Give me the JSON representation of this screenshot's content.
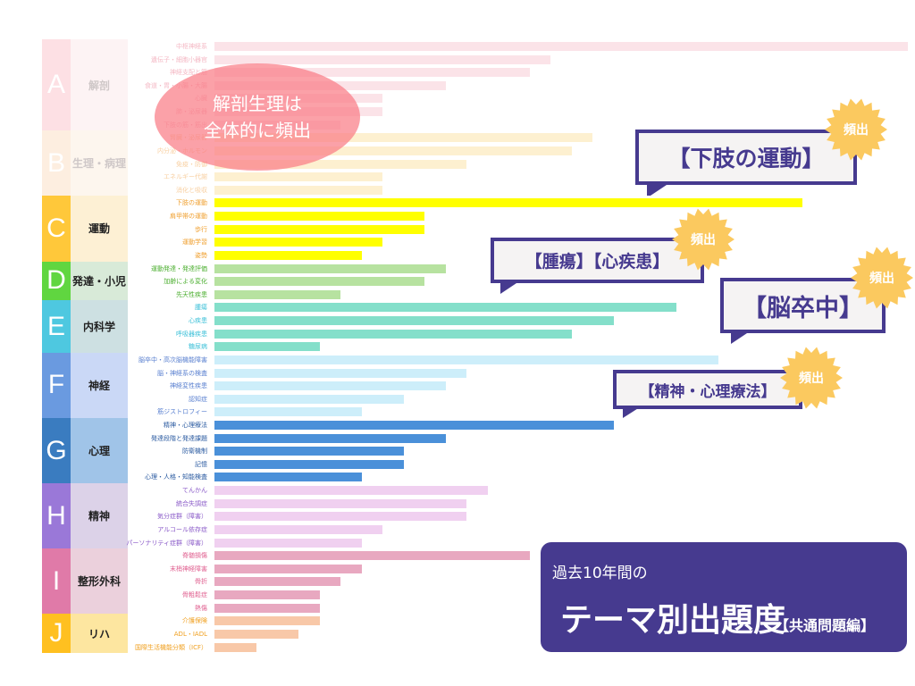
{
  "categories": [
    {
      "letter": "A",
      "name": "解剖",
      "letter_color": "#fde0e4",
      "name_bg": "#fdf3f4",
      "name_color": "#cfc8c8",
      "bar_color": "#fbe3e8",
      "label_color": "#f4b8c4",
      "rows": [
        {
          "label": "中枢神経系",
          "value": 33
        },
        {
          "label": "遺伝子・細胞小器官",
          "value": 16
        },
        {
          "label": "神経支配と筋",
          "value": 15
        },
        {
          "label": "食道・胃・小腸・大腸",
          "value": 11
        },
        {
          "label": "心臓",
          "value": 8
        },
        {
          "label": "肺・泌尿器",
          "value": 8
        },
        {
          "label": "下肢の筋・筋出",
          "value": 6
        }
      ]
    },
    {
      "letter": "B",
      "name": "生理・病理",
      "letter_color": "#fdeee0",
      "name_bg": "#fdf6ee",
      "name_color": "#cfc8c8",
      "bar_color": "#fdf0d0",
      "label_color": "#f8cfa0",
      "rows": [
        {
          "label": "腎臓・泌尿器",
          "value": 18
        },
        {
          "label": "内分泌・ホルモン",
          "value": 17
        },
        {
          "label": "免疫・防御",
          "value": 12
        },
        {
          "label": "エネルギー代謝",
          "value": 8
        },
        {
          "label": "消化と吸収",
          "value": 8
        }
      ]
    },
    {
      "letter": "C",
      "name": "運動",
      "letter_color": "#ffc83a",
      "name_bg": "#fdf0d4",
      "name_color": "#222",
      "bar_color": "#ffff00",
      "label_color": "#f0a030",
      "rows": [
        {
          "label": "下肢の運動",
          "value": 28
        },
        {
          "label": "肩甲帯の運動",
          "value": 10
        },
        {
          "label": "歩行",
          "value": 10
        },
        {
          "label": "運動学習",
          "value": 8
        },
        {
          "label": "姿勢",
          "value": 7
        }
      ]
    },
    {
      "letter": "D",
      "name": "発達・小児",
      "letter_color": "#60d640",
      "name_bg": "#d8ead8",
      "name_color": "#222",
      "bar_color": "#b7e2a0",
      "label_color": "#4caf30",
      "rows": [
        {
          "label": "運動発達・発達評価",
          "value": 11
        },
        {
          "label": "加齢による変化",
          "value": 10
        },
        {
          "label": "先天性疾患",
          "value": 6
        }
      ]
    },
    {
      "letter": "E",
      "name": "内科学",
      "letter_color": "#4ec8e0",
      "name_bg": "#cde0e2",
      "name_color": "#222",
      "bar_color": "#84dfca",
      "label_color": "#3cc0d8",
      "rows": [
        {
          "label": "腫瘍",
          "value": 22
        },
        {
          "label": "心疾患",
          "value": 19
        },
        {
          "label": "呼吸器疾患",
          "value": 17
        },
        {
          "label": "糖尿病",
          "value": 5
        }
      ]
    },
    {
      "letter": "F",
      "name": "神経",
      "letter_color": "#6a9ae0",
      "name_bg": "#cad8f6",
      "name_color": "#222",
      "bar_color": "#cdeefa",
      "label_color": "#5a80d0",
      "rows": [
        {
          "label": "脳卒中・高次脳機能障害",
          "value": 24
        },
        {
          "label": "脳・神経系の検査",
          "value": 12
        },
        {
          "label": "神経変性疾患",
          "value": 11
        },
        {
          "label": "認知症",
          "value": 9
        },
        {
          "label": "筋ジストロフィー",
          "value": 7
        }
      ]
    },
    {
      "letter": "G",
      "name": "心理",
      "letter_color": "#3a7cc0",
      "name_bg": "#a0c4e8",
      "name_color": "#222",
      "bar_color": "#4a90d9",
      "label_color": "#2a5aa0",
      "rows": [
        {
          "label": "精神・心理療法",
          "value": 19
        },
        {
          "label": "発達段階と発達課題",
          "value": 11
        },
        {
          "label": "防衛機制",
          "value": 9
        },
        {
          "label": "記憶",
          "value": 9
        },
        {
          "label": "心理・人格・知能検査",
          "value": 7
        }
      ]
    },
    {
      "letter": "H",
      "name": "精神",
      "letter_color": "#9a78d8",
      "name_bg": "#dcd2e8",
      "name_color": "#222",
      "bar_color": "#f0d0f0",
      "label_color": "#8a5ac8",
      "rows": [
        {
          "label": "てんかん",
          "value": 13
        },
        {
          "label": "統合失調症",
          "value": 12
        },
        {
          "label": "気分症群（障害）",
          "value": 12
        },
        {
          "label": "アルコール依存症",
          "value": 8
        },
        {
          "label": "パーソナリティ症群（障害）",
          "value": 7
        }
      ]
    },
    {
      "letter": "I",
      "name": "整形外科",
      "letter_color": "#e07aa8",
      "name_bg": "#ebd0dc",
      "name_color": "#222",
      "bar_color": "#e8a8c0",
      "label_color": "#e06090",
      "rows": [
        {
          "label": "脊髄損傷",
          "value": 15
        },
        {
          "label": "末梢神経障害",
          "value": 7
        },
        {
          "label": "骨折",
          "value": 6
        },
        {
          "label": "骨粗鬆症",
          "value": 5
        },
        {
          "label": "熱傷",
          "value": 5
        }
      ]
    },
    {
      "letter": "J",
      "name": "リハ",
      "letter_color": "#ffc020",
      "name_bg": "#fde6a0",
      "name_color": "#222",
      "bar_color": "#f8c8a8",
      "label_color": "#f0a020",
      "rows": [
        {
          "label": "介護保険",
          "value": 5
        },
        {
          "label": "ADL・IADL",
          "value": 4
        },
        {
          "label": "国際生活機能分類（ICF）",
          "value": 2
        }
      ]
    }
  ],
  "ellipse": {
    "line1": "解剖生理は",
    "line2": "全体的に頻出"
  },
  "callouts": [
    {
      "text": "【下肢の運動】",
      "badge": "頻出"
    },
    {
      "text": "【腫瘍】【心疾患】",
      "badge": "頻出"
    },
    {
      "text": "【脳卒中】",
      "badge": "頻出"
    },
    {
      "text": "【精神・心理療法】",
      "badge": "頻出"
    }
  ],
  "title": {
    "pre": "過去10年間の",
    "main": "テーマ別出題度",
    "sub": "【共通問題編】"
  },
  "colors": {
    "accent": "#463a8f",
    "star": "#fbc95f"
  }
}
